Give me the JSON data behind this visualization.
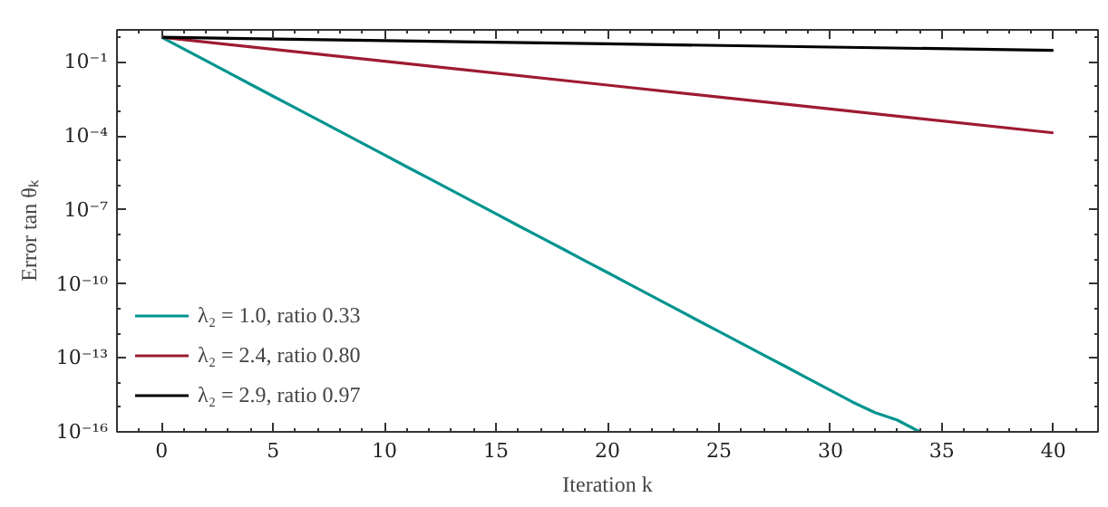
{
  "chart_data": {
    "type": "line",
    "xlabel": "Iteration k",
    "ylabel": "Error tan θₖ",
    "log": "y",
    "xlim": [
      -2,
      42
    ],
    "xticks": [
      0,
      5,
      10,
      15,
      20,
      25,
      30,
      35,
      40
    ],
    "ylim": [
      1e-16,
      2
    ],
    "yticks": [
      {
        "value": 1e-16,
        "label": "10⁻¹⁶"
      },
      {
        "value": 1e-13,
        "label": "10⁻¹³"
      },
      {
        "value": 1e-10,
        "label": "10⁻¹⁰"
      },
      {
        "value": 1e-07,
        "label": "10⁻⁷"
      },
      {
        "value": 0.0001,
        "label": "10⁻⁴"
      },
      {
        "value": 0.1,
        "label": "10⁻¹"
      }
    ],
    "grid": false,
    "legend": "bottom left",
    "line_style": "solid",
    "marker": "none",
    "series": [
      {
        "name": "λ₂ = 1.0, ratio 0.33",
        "color": "#009490",
        "x": [
          0,
          1,
          2,
          3,
          4,
          5,
          6,
          7,
          8,
          9,
          10,
          11,
          12,
          13,
          14,
          15,
          16,
          17,
          18,
          19,
          20,
          21,
          22,
          23,
          24,
          25,
          26,
          27,
          28,
          29,
          30,
          31,
          32,
          33,
          34
        ],
        "values": [
          1,
          0.333,
          0.111,
          0.037,
          0.0123,
          0.0041,
          0.00137,
          0.00046,
          0.000152,
          5.1e-05,
          1.69e-05,
          5.6e-06,
          1.88e-06,
          6.3e-07,
          2.09e-07,
          7e-08,
          2.3e-08,
          7.7e-09,
          2.6e-09,
          8.6e-10,
          2.9e-10,
          9.6e-11,
          3.2e-11,
          1.06e-11,
          3.5e-12,
          1.18e-12,
          3.9e-13,
          1.31e-13,
          4.4e-14,
          1.45e-14,
          4.8e-15,
          1.6e-15,
          6e-16,
          3e-16,
          1e-16
        ]
      },
      {
        "name": "λ₂ = 2.4, ratio 0.80",
        "color": "#9e1b32",
        "x": [
          0,
          10,
          20,
          30,
          40
        ],
        "values": [
          1,
          0.107,
          0.0115,
          0.00124,
          0.000133
        ]
      },
      {
        "name": "λ₂ = 2.9, ratio 0.97",
        "color": "#000000",
        "x": [
          0,
          10,
          20,
          30,
          40
        ],
        "values": [
          1,
          0.737,
          0.544,
          0.401,
          0.296
        ]
      }
    ]
  }
}
